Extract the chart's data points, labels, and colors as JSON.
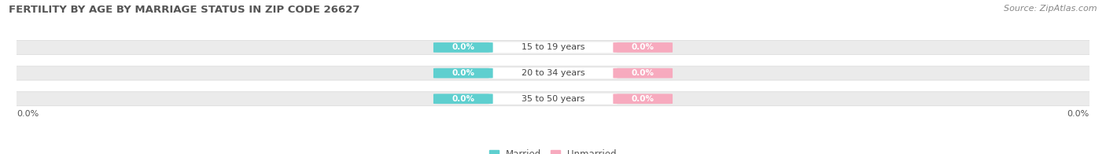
{
  "title": "FERTILITY BY AGE BY MARRIAGE STATUS IN ZIP CODE 26627",
  "source": "Source: ZipAtlas.com",
  "categories": [
    "15 to 19 years",
    "20 to 34 years",
    "35 to 50 years"
  ],
  "married_values": [
    0.0,
    0.0,
    0.0
  ],
  "unmarried_values": [
    0.0,
    0.0,
    0.0
  ],
  "married_color": "#5ecfcf",
  "unmarried_color": "#f7aabe",
  "bar_bg_color": "#ebebeb",
  "bar_border_color": "#d8d8d8",
  "title_fontsize": 9.5,
  "source_fontsize": 8,
  "label_fontsize": 7.5,
  "cat_fontsize": 8,
  "tick_label_fontsize": 8,
  "legend_fontsize": 8.5,
  "background_color": "#ffffff",
  "left_axis_label": "0.0%",
  "right_axis_label": "0.0%"
}
